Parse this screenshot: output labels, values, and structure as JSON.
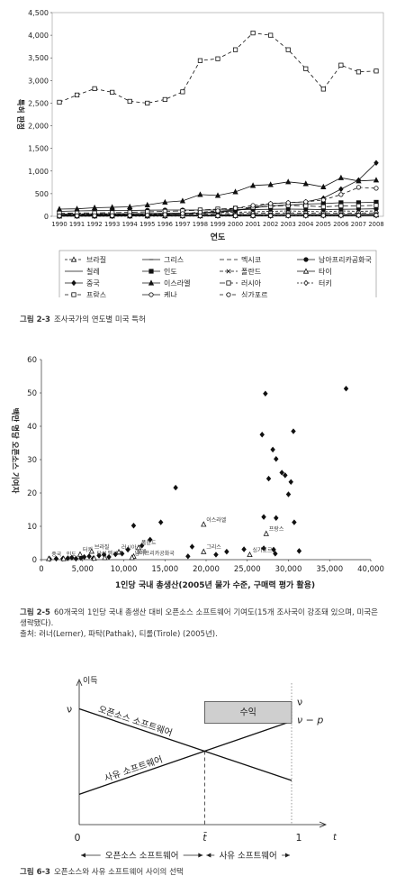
{
  "chart_data": [
    {
      "type": "line",
      "xlabel": "연도",
      "ylabel": "특허 판정",
      "ylim": [
        0,
        4500
      ],
      "yticks": [
        "0",
        "500",
        "1,000",
        "1,500",
        "2,000",
        "2,500",
        "3,000",
        "3,500",
        "4,000",
        "4,500"
      ],
      "x": [
        "1990",
        "1991",
        "1992",
        "1993",
        "1994",
        "1995",
        "1996",
        "1997",
        "1998",
        "1999",
        "2000",
        "2001",
        "2002",
        "2003",
        "2004",
        "2005",
        "2006",
        "2007",
        "2008"
      ],
      "legend_position": "bottom",
      "series": [
        {
          "name": "브라질",
          "marker": "triangle-open",
          "dash": "3,2",
          "values": [
            40,
            42,
            44,
            45,
            50,
            55,
            60,
            65,
            70,
            80,
            90,
            100,
            110,
            120,
            110,
            100,
            120,
            110,
            120
          ]
        },
        {
          "name": "그리스",
          "marker": "dash",
          "dash": "",
          "values": [
            20,
            20,
            22,
            22,
            24,
            25,
            26,
            28,
            30,
            32,
            35,
            38,
            40,
            42,
            40,
            38,
            40,
            40,
            42
          ]
        },
        {
          "name": "멕시코",
          "marker": "none",
          "dash": "5,3",
          "values": [
            30,
            32,
            34,
            35,
            36,
            38,
            40,
            45,
            50,
            55,
            60,
            65,
            70,
            75,
            70,
            65,
            70,
            72,
            75
          ]
        },
        {
          "name": "남아프리카공화국",
          "marker": "circle",
          "dash": "",
          "values": [
            110,
            120,
            125,
            128,
            130,
            135,
            140,
            140,
            140,
            140,
            145,
            150,
            155,
            160,
            155,
            150,
            155,
            160,
            165
          ]
        },
        {
          "name": "칠레",
          "marker": "none",
          "dash": "",
          "values": [
            5,
            5,
            6,
            6,
            7,
            7,
            8,
            8,
            9,
            10,
            10,
            11,
            12,
            12,
            13,
            13,
            14,
            15,
            16
          ]
        },
        {
          "name": "인도",
          "marker": "square",
          "dash": "",
          "values": [
            25,
            30,
            32,
            35,
            40,
            40,
            45,
            50,
            80,
            100,
            140,
            180,
            230,
            250,
            270,
            280,
            300,
            300,
            310
          ]
        },
        {
          "name": "폴란드",
          "marker": "x",
          "dash": "4,2",
          "values": [
            10,
            10,
            12,
            12,
            14,
            14,
            16,
            16,
            18,
            18,
            20,
            22,
            22,
            24,
            26,
            28,
            30,
            30,
            32
          ]
        },
        {
          "name": "타이",
          "marker": "triangle-open",
          "dash": "",
          "values": [
            5,
            6,
            6,
            7,
            8,
            8,
            9,
            10,
            10,
            12,
            14,
            16,
            18,
            20,
            22,
            24,
            26,
            28,
            30
          ]
        },
        {
          "name": "중국",
          "marker": "diamond",
          "dash": "",
          "values": [
            50,
            52,
            55,
            58,
            60,
            62,
            65,
            65,
            70,
            90,
            120,
            200,
            280,
            300,
            320,
            400,
            600,
            800,
            1180
          ]
        },
        {
          "name": "이스라엘",
          "marker": "triangle",
          "dash": "",
          "values": [
            160,
            165,
            190,
            200,
            210,
            250,
            310,
            340,
            480,
            460,
            540,
            680,
            700,
            760,
            720,
            650,
            850,
            780,
            800
          ]
        },
        {
          "name": "러시아",
          "marker": "square-open",
          "dash": "6,3",
          "values": [
            70,
            72,
            75,
            80,
            90,
            100,
            110,
            120,
            140,
            160,
            180,
            200,
            220,
            240,
            230,
            210,
            230,
            230,
            240
          ]
        },
        {
          "name": "터키",
          "marker": "diamond-open",
          "dash": "2,2",
          "values": [
            2,
            2,
            3,
            3,
            3,
            4,
            4,
            5,
            5,
            6,
            6,
            8,
            8,
            9,
            10,
            12,
            14,
            16,
            18
          ]
        },
        {
          "name": "프랑스",
          "marker": "square-open",
          "dash": "4,3",
          "values": [
            2520,
            2680,
            2820,
            2740,
            2540,
            2500,
            2580,
            2750,
            3440,
            3480,
            3680,
            4050,
            4000,
            3680,
            3260,
            2810,
            3340,
            3190,
            3210
          ]
        },
        {
          "name": "케나",
          "marker": "circle-open",
          "dash": "",
          "values": [
            8,
            8,
            9,
            9,
            10,
            10,
            11,
            11,
            12,
            12,
            13,
            14,
            15,
            16,
            17,
            18,
            20,
            22,
            25
          ]
        },
        {
          "name": "싱가포르",
          "marker": "circle-open",
          "dash": "4,3",
          "values": [
            10,
            12,
            14,
            15,
            20,
            25,
            40,
            60,
            90,
            120,
            180,
            240,
            280,
            300,
            320,
            360,
            480,
            640,
            620
          ]
        }
      ]
    },
    {
      "type": "scatter",
      "xlabel": "1인당 국내 총생산(2005년 물가 수준, 구매력 평가 활용)",
      "ylabel": "백만 명당 오픈소스 기여자",
      "xlim": [
        0,
        40000
      ],
      "ylim": [
        0,
        60
      ],
      "xticks": [
        "0",
        "5,000",
        "10,000",
        "15,000",
        "20,000",
        "25,000",
        "30,000",
        "35,000",
        "40,000"
      ],
      "yticks": [
        "0",
        "10",
        "20",
        "30",
        "40",
        "50",
        "60"
      ],
      "points": [
        {
          "x": 1000,
          "y": 0.2
        },
        {
          "x": 1800,
          "y": 0.3
        },
        {
          "x": 2600,
          "y": 0.3
        },
        {
          "x": 3200,
          "y": 0.4
        },
        {
          "x": 3700,
          "y": 0.6
        },
        {
          "x": 4200,
          "y": 0.3
        },
        {
          "x": 4800,
          "y": 0.5
        },
        {
          "x": 5200,
          "y": 0.8
        },
        {
          "x": 5800,
          "y": 1.0
        },
        {
          "x": 6300,
          "y": 0.4
        },
        {
          "x": 7000,
          "y": 1.2
        },
        {
          "x": 7600,
          "y": 1.5
        },
        {
          "x": 8200,
          "y": 0.8
        },
        {
          "x": 9000,
          "y": 1.6
        },
        {
          "x": 9800,
          "y": 1.8
        },
        {
          "x": 10500,
          "y": 3.0
        },
        {
          "x": 11200,
          "y": 10.2
        },
        {
          "x": 12200,
          "y": 4.2
        },
        {
          "x": 13200,
          "y": 6.0
        },
        {
          "x": 14500,
          "y": 11.2
        },
        {
          "x": 16300,
          "y": 21.6
        },
        {
          "x": 17800,
          "y": 1.0
        },
        {
          "x": 18300,
          "y": 3.9
        },
        {
          "x": 21200,
          "y": 1.5
        },
        {
          "x": 22500,
          "y": 2.4
        },
        {
          "x": 24600,
          "y": 3.1
        },
        {
          "x": 26800,
          "y": 37.5
        },
        {
          "x": 27200,
          "y": 49.8
        },
        {
          "x": 27600,
          "y": 24.3
        },
        {
          "x": 28100,
          "y": 33.0
        },
        {
          "x": 28500,
          "y": 30.2
        },
        {
          "x": 29200,
          "y": 26.1
        },
        {
          "x": 29600,
          "y": 25.3
        },
        {
          "x": 30000,
          "y": 19.6
        },
        {
          "x": 30300,
          "y": 23.3
        },
        {
          "x": 30600,
          "y": 38.5
        },
        {
          "x": 30700,
          "y": 11.2
        },
        {
          "x": 31300,
          "y": 2.6
        },
        {
          "x": 37000,
          "y": 51.3
        },
        {
          "x": 27000,
          "y": 12.8
        },
        {
          "x": 28500,
          "y": 12.5
        },
        {
          "x": 28200,
          "y": 3.0
        },
        {
          "x": 28400,
          "y": 1.8
        },
        {
          "x": 27000,
          "y": 3.4
        }
      ],
      "labeled_points": [
        {
          "x": 900,
          "y": 0.3,
          "label": "중국"
        },
        {
          "x": 2700,
          "y": 0.3,
          "label": "인도"
        },
        {
          "x": 4700,
          "y": 1.6,
          "label": "터키"
        },
        {
          "x": 6100,
          "y": 2.5,
          "label": "브라질"
        },
        {
          "x": 6400,
          "y": 0.4,
          "label": "타이"
        },
        {
          "x": 7700,
          "y": 0.6,
          "label": "멕시코"
        },
        {
          "x": 9400,
          "y": 2.3,
          "label": "러시아"
        },
        {
          "x": 11200,
          "y": 1.0,
          "label": "칠레"
        },
        {
          "x": 11000,
          "y": 0.6,
          "label": "남아프리카공화국"
        },
        {
          "x": 11800,
          "y": 3.6,
          "label": "폴란드"
        },
        {
          "x": 19700,
          "y": 2.4,
          "label": "그리스"
        },
        {
          "x": 19700,
          "y": 10.6,
          "label": "이스라엘"
        },
        {
          "x": 25300,
          "y": 1.5,
          "label": "싱가포르"
        },
        {
          "x": 27300,
          "y": 7.8,
          "label": "프랑스"
        }
      ]
    },
    {
      "type": "line",
      "ylabel": "이득",
      "xlabel": "t",
      "ylim": [
        0,
        1
      ],
      "xlim": [
        0,
        1
      ],
      "value_labels": {
        "top": "ν",
        "lower": "ν − p"
      },
      "tick_labels": {
        "zero": "0",
        "tbar": "t̄",
        "one": "1"
      },
      "series": [
        {
          "name": "오픈소스 소프트웨어",
          "x": [
            0,
            1
          ],
          "y": [
            0.84,
            0.32
          ]
        },
        {
          "name": "사유 소프트웨어",
          "x": [
            0,
            1
          ],
          "y": [
            0.22,
            0.75
          ]
        }
      ],
      "box_label": "수익",
      "regions": [
        {
          "label": "오픈소스 소프트웨어",
          "from": 0,
          "to": 0.6
        },
        {
          "label": "사유 소프트웨어",
          "from": 0.6,
          "to": 1
        }
      ]
    }
  ],
  "captions": {
    "fig1": {
      "num": "그림 2-3",
      "text": "조사국가의 연도별 미국 특허"
    },
    "fig2": {
      "num": "그림 2-5",
      "text": "60개국의 1인당 국내 총생산 대비 오픈소스 소프트웨어 기여도(15개 조사국이 강조돼 있으며, 미국은 생략됐다).",
      "source": "출처: 러너(Lerner), 파탁(Pathak), 티롤(Tirole) (2005년)."
    },
    "fig3": {
      "num": "그림 6-3",
      "text": "오픈소스와 사유 소프트웨어 사이의 선택"
    }
  }
}
